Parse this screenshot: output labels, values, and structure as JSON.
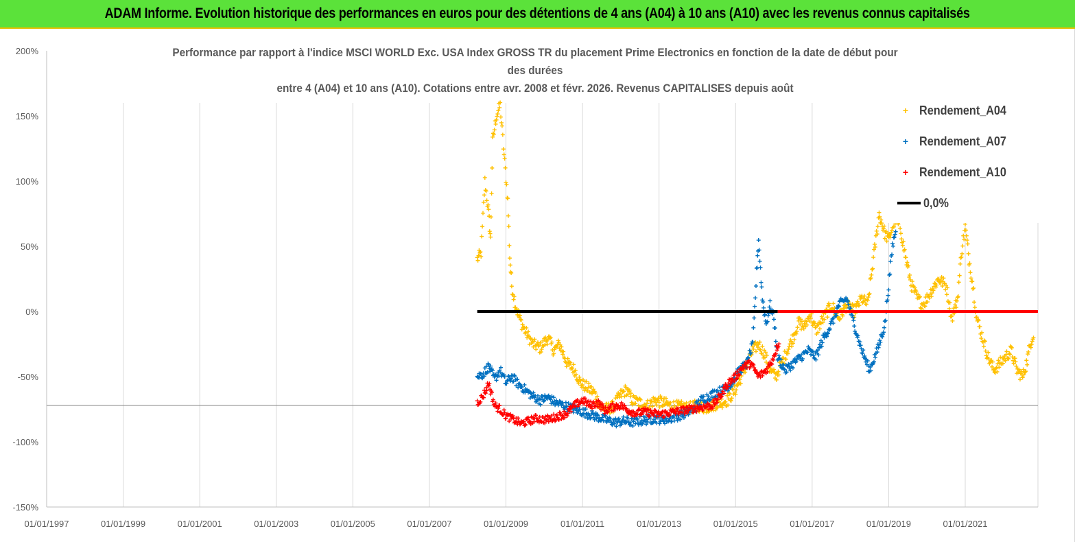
{
  "banner": {
    "title": "ADAM Informe. Evolution historique des performances en euros pour des détentions de 4 ans (A04) à 10 ans (A10) avec les revenus connus capitalisés"
  },
  "chart_data": {
    "type": "scatter",
    "title_lines": [
      "Performance par rapport à l'indice MSCI WORLD Exc. USA Index GROSS TR  du placement Prime Electronics  en fonction de la date de début pour",
      "des durées",
      "entre 4 (A04) et 10 ans (A10). Cotations entre avr. 2008 et févr. 2026. Revenus CAPITALISES depuis août"
    ],
    "x_tick_labels": [
      "01/01/1997",
      "01/01/1999",
      "01/01/2001",
      "01/01/2003",
      "01/01/2005",
      "01/01/2007",
      "01/01/2009",
      "01/01/2011",
      "01/01/2013",
      "01/01/2015",
      "01/01/2017",
      "01/01/2019",
      "01/01/2021"
    ],
    "x_ticks_year": [
      1997,
      1999,
      2001,
      2003,
      2005,
      2007,
      2009,
      2011,
      2013,
      2015,
      2017,
      2019,
      2021
    ],
    "xlim_year": [
      1997,
      2022.9
    ],
    "y_tick_labels": [
      "200%",
      "150%",
      "100%",
      "50%",
      "0%",
      "-50%",
      "-100%",
      "-150%"
    ],
    "y_ticks": [
      200,
      150,
      100,
      50,
      0,
      -50,
      -100,
      -150
    ],
    "ylim": [
      -150,
      200
    ],
    "grid": "vertical",
    "legend_position": "top-right",
    "series": [
      {
        "name": "Rendement_A04",
        "color": "#ffc000",
        "marker": "+",
        "points": [
          [
            2008.25,
            40
          ],
          [
            2008.35,
            45
          ],
          [
            2008.45,
            100
          ],
          [
            2008.55,
            75
          ],
          [
            2008.6,
            55
          ],
          [
            2008.65,
            130
          ],
          [
            2008.75,
            150
          ],
          [
            2008.85,
            158
          ],
          [
            2008.95,
            120
          ],
          [
            2009.05,
            85
          ],
          [
            2009.1,
            42
          ],
          [
            2009.15,
            20
          ],
          [
            2009.25,
            5
          ],
          [
            2009.35,
            -5
          ],
          [
            2009.5,
            -15
          ],
          [
            2009.7,
            -25
          ],
          [
            2009.9,
            -28
          ],
          [
            2010.1,
            -20
          ],
          [
            2010.25,
            -30
          ],
          [
            2010.4,
            -25
          ],
          [
            2010.6,
            -40
          ],
          [
            2010.8,
            -45
          ],
          [
            2010.95,
            -55
          ],
          [
            2011.1,
            -58
          ],
          [
            2011.3,
            -62
          ],
          [
            2011.45,
            -72
          ],
          [
            2011.6,
            -75
          ],
          [
            2011.8,
            -73
          ],
          [
            2012.0,
            -64
          ],
          [
            2012.15,
            -60
          ],
          [
            2012.3,
            -68
          ],
          [
            2012.5,
            -70
          ],
          [
            2012.7,
            -72
          ],
          [
            2012.9,
            -68
          ],
          [
            2013.1,
            -70
          ],
          [
            2013.3,
            -72
          ],
          [
            2013.5,
            -73
          ],
          [
            2013.8,
            -74
          ],
          [
            2014.0,
            -72
          ],
          [
            2014.2,
            -74
          ],
          [
            2014.4,
            -72
          ],
          [
            2014.6,
            -70
          ],
          [
            2014.8,
            -68
          ],
          [
            2015.0,
            -60
          ],
          [
            2015.15,
            -50
          ],
          [
            2015.3,
            -40
          ],
          [
            2015.45,
            -30
          ],
          [
            2015.6,
            -25
          ],
          [
            2015.75,
            -32
          ],
          [
            2015.9,
            -45
          ],
          [
            2016.05,
            -50
          ],
          [
            2016.2,
            -40
          ],
          [
            2016.35,
            -30
          ],
          [
            2016.5,
            -20
          ],
          [
            2016.65,
            -8
          ],
          [
            2016.8,
            -12
          ],
          [
            2016.95,
            -2
          ],
          [
            2017.1,
            -15
          ],
          [
            2017.3,
            -5
          ],
          [
            2017.5,
            5
          ],
          [
            2017.7,
            -5
          ],
          [
            2017.9,
            5
          ],
          [
            2018.1,
            0
          ],
          [
            2018.3,
            10
          ],
          [
            2018.45,
            5
          ],
          [
            2018.6,
            40
          ],
          [
            2018.75,
            75
          ],
          [
            2018.9,
            60
          ],
          [
            2019.0,
            55
          ],
          [
            2019.15,
            70
          ],
          [
            2019.3,
            65
          ],
          [
            2019.45,
            40
          ],
          [
            2019.6,
            20
          ],
          [
            2019.75,
            10
          ],
          [
            2019.9,
            5
          ],
          [
            2020.1,
            15
          ],
          [
            2020.3,
            25
          ],
          [
            2020.5,
            20
          ],
          [
            2020.65,
            -5
          ],
          [
            2020.8,
            10
          ],
          [
            2020.9,
            45
          ],
          [
            2021.0,
            65
          ],
          [
            2021.1,
            40
          ],
          [
            2021.2,
            20
          ],
          [
            2021.3,
            -5
          ],
          [
            2021.45,
            -20
          ],
          [
            2021.6,
            -35
          ],
          [
            2021.75,
            -45
          ],
          [
            2021.9,
            -40
          ],
          [
            2022.05,
            -35
          ],
          [
            2022.2,
            -30
          ],
          [
            2022.35,
            -45
          ],
          [
            2022.5,
            -50
          ],
          [
            2022.6,
            -40
          ],
          [
            2022.7,
            -25
          ],
          [
            2022.8,
            -15
          ]
        ]
      },
      {
        "name": "Rendement_A07",
        "color": "#0070c0",
        "marker": "+",
        "points": [
          [
            2008.25,
            -50
          ],
          [
            2008.4,
            -48
          ],
          [
            2008.55,
            -42
          ],
          [
            2008.7,
            -52
          ],
          [
            2008.85,
            -45
          ],
          [
            2009.0,
            -55
          ],
          [
            2009.15,
            -50
          ],
          [
            2009.3,
            -55
          ],
          [
            2009.5,
            -60
          ],
          [
            2009.7,
            -65
          ],
          [
            2009.9,
            -68
          ],
          [
            2010.1,
            -66
          ],
          [
            2010.3,
            -70
          ],
          [
            2010.5,
            -72
          ],
          [
            2010.7,
            -74
          ],
          [
            2010.9,
            -76
          ],
          [
            2011.1,
            -78
          ],
          [
            2011.3,
            -80
          ],
          [
            2011.5,
            -82
          ],
          [
            2011.7,
            -84
          ],
          [
            2011.9,
            -85
          ],
          [
            2012.1,
            -84
          ],
          [
            2012.3,
            -85
          ],
          [
            2012.5,
            -84
          ],
          [
            2012.7,
            -83
          ],
          [
            2012.9,
            -82
          ],
          [
            2013.1,
            -83
          ],
          [
            2013.3,
            -82
          ],
          [
            2013.5,
            -80
          ],
          [
            2013.7,
            -78
          ],
          [
            2013.9,
            -75
          ],
          [
            2014.1,
            -68
          ],
          [
            2014.3,
            -65
          ],
          [
            2014.5,
            -62
          ],
          [
            2014.7,
            -60
          ],
          [
            2014.9,
            -55
          ],
          [
            2015.1,
            -45
          ],
          [
            2015.3,
            -40
          ],
          [
            2015.45,
            -25
          ],
          [
            2015.55,
            30
          ],
          [
            2015.6,
            55
          ],
          [
            2015.7,
            10
          ],
          [
            2015.8,
            -10
          ],
          [
            2015.9,
            5
          ],
          [
            2016.0,
            -5
          ],
          [
            2016.1,
            -35
          ],
          [
            2016.3,
            -45
          ],
          [
            2016.5,
            -40
          ],
          [
            2016.7,
            -35
          ],
          [
            2016.9,
            -30
          ],
          [
            2017.1,
            -35
          ],
          [
            2017.3,
            -20
          ],
          [
            2017.5,
            -10
          ],
          [
            2017.7,
            5
          ],
          [
            2017.9,
            10
          ],
          [
            2018.1,
            -10
          ],
          [
            2018.3,
            -30
          ],
          [
            2018.5,
            -45
          ],
          [
            2018.7,
            -30
          ],
          [
            2018.9,
            -10
          ],
          [
            2019.0,
            20
          ],
          [
            2019.1,
            50
          ],
          [
            2019.2,
            65
          ]
        ]
      },
      {
        "name": "Rendement_A10",
        "color": "#ff0000",
        "marker": "+",
        "points": [
          [
            2008.25,
            -70
          ],
          [
            2008.4,
            -65
          ],
          [
            2008.55,
            -55
          ],
          [
            2008.7,
            -72
          ],
          [
            2008.85,
            -75
          ],
          [
            2009.0,
            -80
          ],
          [
            2009.2,
            -83
          ],
          [
            2009.4,
            -86
          ],
          [
            2009.6,
            -84
          ],
          [
            2009.8,
            -82
          ],
          [
            2010.0,
            -83
          ],
          [
            2010.2,
            -82
          ],
          [
            2010.4,
            -80
          ],
          [
            2010.6,
            -78
          ],
          [
            2010.8,
            -72
          ],
          [
            2011.0,
            -68
          ],
          [
            2011.2,
            -72
          ],
          [
            2011.4,
            -70
          ],
          [
            2011.6,
            -76
          ],
          [
            2011.8,
            -73
          ],
          [
            2012.0,
            -72
          ],
          [
            2012.2,
            -76
          ],
          [
            2012.4,
            -78
          ],
          [
            2012.6,
            -77
          ],
          [
            2012.8,
            -78
          ],
          [
            2013.0,
            -79
          ],
          [
            2013.2,
            -78
          ],
          [
            2013.4,
            -77
          ],
          [
            2013.6,
            -76
          ],
          [
            2013.8,
            -75
          ],
          [
            2014.0,
            -74
          ],
          [
            2014.2,
            -73
          ],
          [
            2014.4,
            -72
          ],
          [
            2014.6,
            -65
          ],
          [
            2014.8,
            -55
          ],
          [
            2015.0,
            -50
          ],
          [
            2015.2,
            -42
          ],
          [
            2015.4,
            -40
          ],
          [
            2015.6,
            -50
          ],
          [
            2015.8,
            -45
          ],
          [
            2015.95,
            -38
          ],
          [
            2016.05,
            -30
          ],
          [
            2016.15,
            -22
          ]
        ]
      },
      {
        "name": "0,0%",
        "color": "#000000",
        "marker": "line",
        "points": [
          [
            2008.25,
            0
          ],
          [
            2016.1,
            0
          ]
        ]
      },
      {
        "name": "",
        "color": "#ff0000",
        "marker": "line",
        "points": [
          [
            2016.1,
            0
          ],
          [
            2022.9,
            0
          ]
        ]
      }
    ],
    "extra_horizontal_line_y": -72
  }
}
